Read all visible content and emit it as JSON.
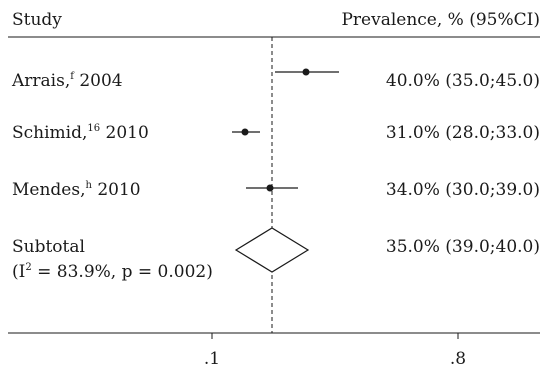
{
  "chart_data": {
    "type": "forest",
    "title": "",
    "header": {
      "left": "Study",
      "right": "Prevalence, % (95%CI)"
    },
    "x_ticks": [
      ".1",
      ".8"
    ],
    "reference_line": "dashed",
    "studies": [
      {
        "name": "Arrais,",
        "sup": "f",
        "year": " 2004",
        "estimate": 40.0,
        "ci_low": 35.0,
        "ci_high": 45.0,
        "label": "40.0% (35.0;45.0)"
      },
      {
        "name": "Schimid,",
        "sup": "16",
        "year": " 2010",
        "estimate": 31.0,
        "ci_low": 28.0,
        "ci_high": 33.0,
        "label": "31.0% (28.0;33.0)"
      },
      {
        "name": "Mendes,",
        "sup": "h",
        "year": " 2010",
        "estimate": 34.0,
        "ci_low": 30.0,
        "ci_high": 39.0,
        "label": "34.0% (30.0;39.0)"
      }
    ],
    "subtotal": {
      "name": "Subtotal",
      "heterogeneity_pre": "(I",
      "heterogeneity_sup": "2",
      "heterogeneity_post": " = 83.9%, p = 0.002)",
      "estimate": 35.0,
      "ci_low": 39.0,
      "ci_high": 40.0,
      "label": "35.0% (39.0;40.0)"
    }
  }
}
